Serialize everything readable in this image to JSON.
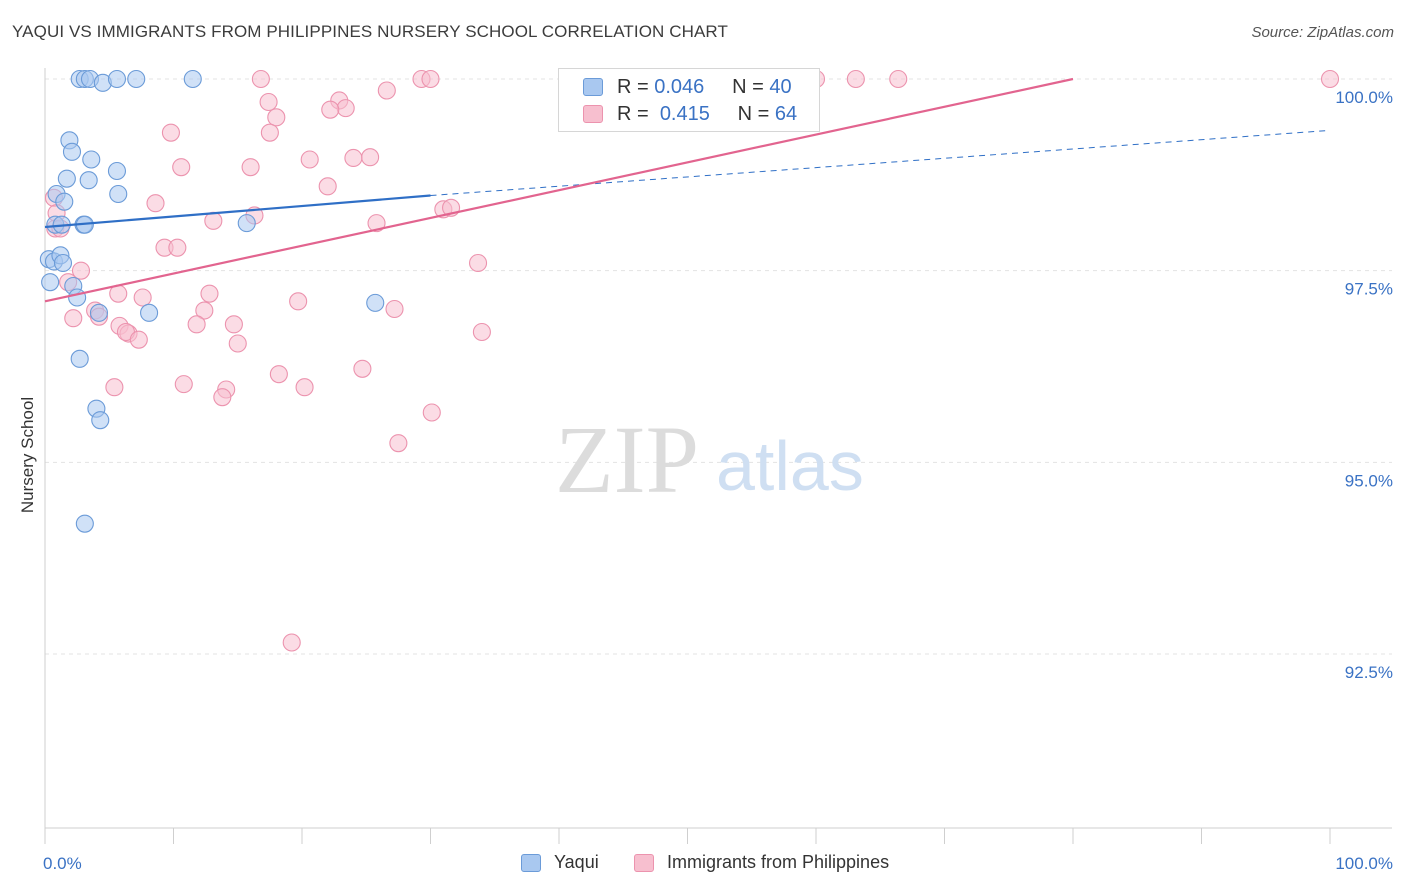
{
  "title": "YAQUI VS IMMIGRANTS FROM PHILIPPINES NURSERY SCHOOL CORRELATION CHART",
  "source": "Source: ZipAtlas.com",
  "watermark": {
    "zip": "ZIP",
    "atlas": "atlas"
  },
  "legend": {
    "r_label": "R =",
    "n_label": "N =",
    "rows": [
      {
        "r": "0.046",
        "n": "40"
      },
      {
        "r": "0.415",
        "n": "64"
      }
    ]
  },
  "colors": {
    "yaqui_fill": "#a9c8f0",
    "yaqui_stroke": "#6b9bd8",
    "yaqui_line": "#2f6fc6",
    "phil_fill": "#f7bfcf",
    "phil_stroke": "#ec93ae",
    "phil_line": "#e2648f",
    "axis_label": "#3a72c4",
    "grid": "#e3e3e3"
  },
  "chart_data": {
    "type": "scatter",
    "title": "YAQUI VS IMMIGRANTS FROM PHILIPPINES NURSERY SCHOOL CORRELATION CHART",
    "xlabel": "",
    "ylabel": "Nursery School",
    "xlim": [
      0,
      100
    ],
    "ylim": [
      90.2,
      100.2
    ],
    "x_tick_labels": [
      "0.0%",
      "100.0%"
    ],
    "y_ticks": [
      {
        "value": 100.0,
        "label": "100.0%"
      },
      {
        "value": 97.5,
        "label": "97.5%"
      },
      {
        "value": 95.0,
        "label": "95.0%"
      },
      {
        "value": 92.5,
        "label": "92.5%"
      }
    ],
    "grid": true,
    "legend_position": "bottom",
    "series": [
      {
        "name": "Yaqui",
        "r": 0.046,
        "n": 40,
        "trend": {
          "x0": 0,
          "y0": 98.07,
          "x1": 30,
          "y1": 98.48,
          "dashed_to_x": 100,
          "dashed_to_y": 99.33
        },
        "points": [
          [
            2.7,
            100.0
          ],
          [
            3.1,
            100.0
          ],
          [
            3.5,
            100.0
          ],
          [
            4.5,
            99.95
          ],
          [
            5.6,
            100.0
          ],
          [
            7.1,
            100.0
          ],
          [
            11.5,
            100.0
          ],
          [
            1.9,
            99.2
          ],
          [
            2.1,
            99.05
          ],
          [
            3.6,
            98.95
          ],
          [
            5.6,
            98.8
          ],
          [
            1.7,
            98.7
          ],
          [
            3.4,
            98.68
          ],
          [
            0.9,
            98.5
          ],
          [
            1.5,
            98.4
          ],
          [
            5.7,
            98.5
          ],
          [
            0.8,
            98.1
          ],
          [
            1.3,
            98.1
          ],
          [
            3.0,
            98.1
          ],
          [
            3.1,
            98.1
          ],
          [
            15.7,
            98.12
          ],
          [
            0.3,
            97.65
          ],
          [
            0.7,
            97.62
          ],
          [
            1.2,
            97.7
          ],
          [
            1.4,
            97.6
          ],
          [
            0.4,
            97.35
          ],
          [
            2.2,
            97.3
          ],
          [
            2.5,
            97.15
          ],
          [
            4.2,
            96.95
          ],
          [
            8.1,
            96.95
          ],
          [
            25.7,
            97.08
          ],
          [
            2.7,
            96.35
          ],
          [
            4.0,
            95.7
          ],
          [
            4.3,
            95.55
          ],
          [
            3.1,
            94.2
          ]
        ]
      },
      {
        "name": "Immigrants from Philippines",
        "r": 0.415,
        "n": 64,
        "trend": {
          "x0": 0,
          "y0": 97.1,
          "x1": 80,
          "y1": 100.0
        },
        "points": [
          [
            16.8,
            100.0
          ],
          [
            29.3,
            100.0
          ],
          [
            30.0,
            100.0
          ],
          [
            60.0,
            100.0
          ],
          [
            63.1,
            100.0
          ],
          [
            66.4,
            100.0
          ],
          [
            100.0,
            100.0
          ],
          [
            26.6,
            99.85
          ],
          [
            17.4,
            99.7
          ],
          [
            22.9,
            99.72
          ],
          [
            23.4,
            99.62
          ],
          [
            22.2,
            99.6
          ],
          [
            18.0,
            99.5
          ],
          [
            9.8,
            99.3
          ],
          [
            17.5,
            99.3
          ],
          [
            25.3,
            98.98
          ],
          [
            20.6,
            98.95
          ],
          [
            10.6,
            98.85
          ],
          [
            16.0,
            98.85
          ],
          [
            24.0,
            98.97
          ],
          [
            22.0,
            98.6
          ],
          [
            0.7,
            98.45
          ],
          [
            8.6,
            98.38
          ],
          [
            31.0,
            98.3
          ],
          [
            31.6,
            98.32
          ],
          [
            0.9,
            98.25
          ],
          [
            16.3,
            98.22
          ],
          [
            13.1,
            98.15
          ],
          [
            25.8,
            98.12
          ],
          [
            0.8,
            98.05
          ],
          [
            1.2,
            98.05
          ],
          [
            9.3,
            97.8
          ],
          [
            10.3,
            97.8
          ],
          [
            2.8,
            97.5
          ],
          [
            33.7,
            97.6
          ],
          [
            1.8,
            97.35
          ],
          [
            5.7,
            97.2
          ],
          [
            7.6,
            97.15
          ],
          [
            12.8,
            97.2
          ],
          [
            19.7,
            97.1
          ],
          [
            27.2,
            97.0
          ],
          [
            12.4,
            96.98
          ],
          [
            3.9,
            96.98
          ],
          [
            2.2,
            96.88
          ],
          [
            4.2,
            96.9
          ],
          [
            5.8,
            96.78
          ],
          [
            11.8,
            96.8
          ],
          [
            14.7,
            96.8
          ],
          [
            6.5,
            96.68
          ],
          [
            6.3,
            96.7
          ],
          [
            7.3,
            96.6
          ],
          [
            15.0,
            96.55
          ],
          [
            34.0,
            96.7
          ],
          [
            24.7,
            96.22
          ],
          [
            18.2,
            96.15
          ],
          [
            10.8,
            96.02
          ],
          [
            5.4,
            95.98
          ],
          [
            14.1,
            95.95
          ],
          [
            20.2,
            95.98
          ],
          [
            13.8,
            95.85
          ],
          [
            30.1,
            95.65
          ],
          [
            27.5,
            95.25
          ],
          [
            19.2,
            92.65
          ]
        ]
      }
    ]
  },
  "bottom_legend": {
    "items": [
      {
        "label": "Yaqui"
      },
      {
        "label": "Immigrants from Philippines"
      }
    ]
  }
}
